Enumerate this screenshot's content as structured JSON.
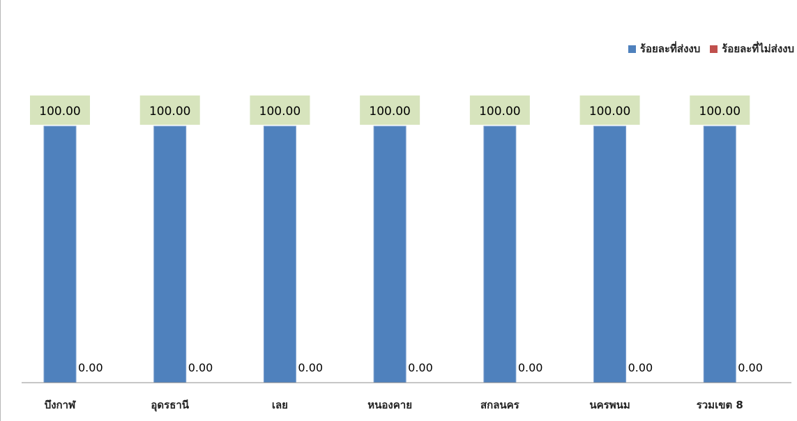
{
  "chart_data": {
    "type": "bar",
    "title": "",
    "xlabel": "",
    "ylabel": "",
    "ylim": [
      0,
      100
    ],
    "categories": [
      "บึงกาฬ",
      "อุดรธานี",
      "เลย",
      "หนองคาย",
      "สกลนคร",
      "นครพนม",
      "รวมเขต 8"
    ],
    "series": [
      {
        "name": "ร้อยละที่ส่งงบ",
        "values": [
          100.0,
          100.0,
          100.0,
          100.0,
          100.0,
          100.0,
          100.0
        ],
        "labels": [
          "100.00",
          "100.00",
          "100.00",
          "100.00",
          "100.00",
          "100.00",
          "100.00"
        ],
        "color": "#4f81bd"
      },
      {
        "name": "ร้อยละที่ไม่ส่งงบ",
        "values": [
          0.0,
          0.0,
          0.0,
          0.0,
          0.0,
          0.0,
          0.0
        ],
        "labels": [
          "0.00",
          "0.00",
          "0.00",
          "0.00",
          "0.00",
          "0.00",
          "0.00"
        ],
        "color": "#c0504d"
      }
    ],
    "legend_position": "top-right",
    "grid": false,
    "data_label_color": "#d7e4bd"
  }
}
